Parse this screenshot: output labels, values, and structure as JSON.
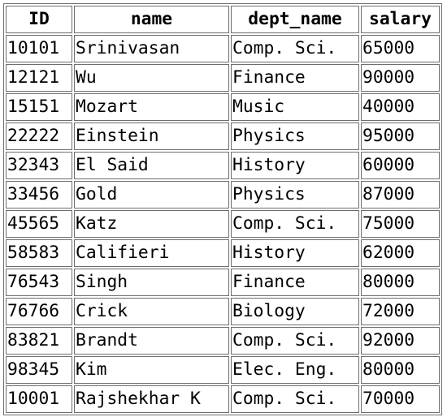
{
  "table": {
    "headers": [
      "ID",
      "name",
      "dept_name",
      "salary"
    ],
    "rows": [
      [
        "10101",
        "Srinivasan",
        "Comp. Sci.",
        "65000"
      ],
      [
        "12121",
        "Wu",
        "Finance",
        "90000"
      ],
      [
        "15151",
        "Mozart",
        "Music",
        "40000"
      ],
      [
        "22222",
        "Einstein",
        "Physics",
        "95000"
      ],
      [
        "32343",
        "El Said",
        "History",
        "60000"
      ],
      [
        "33456",
        "Gold",
        "Physics",
        "87000"
      ],
      [
        "45565",
        "Katz",
        "Comp. Sci.",
        "75000"
      ],
      [
        "58583",
        "Califieri",
        "History",
        "62000"
      ],
      [
        "76543",
        "Singh",
        "Finance",
        "80000"
      ],
      [
        "76766",
        "Crick",
        "Biology",
        "72000"
      ],
      [
        "83821",
        "Brandt",
        "Comp. Sci.",
        "92000"
      ],
      [
        "98345",
        "Kim",
        "Elec. Eng.",
        "80000"
      ],
      [
        "10001",
        "Rajshekhar K",
        "Comp. Sci.",
        "70000"
      ]
    ]
  }
}
